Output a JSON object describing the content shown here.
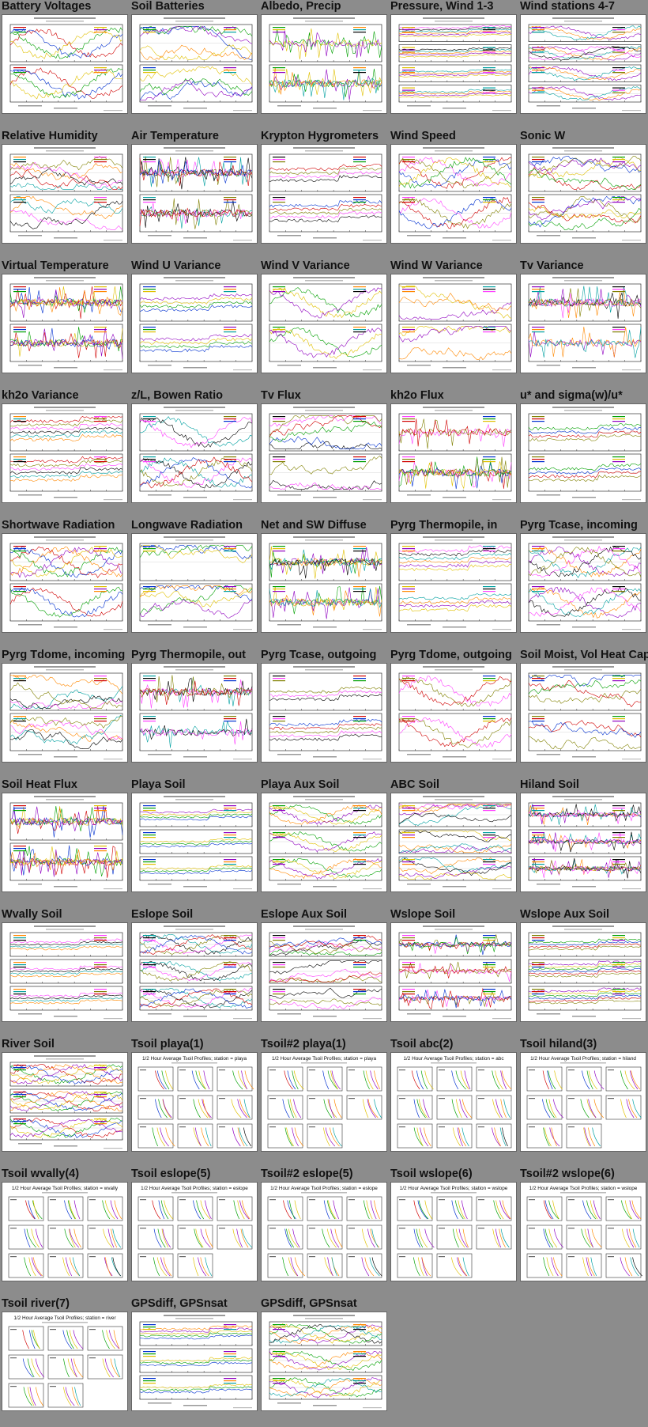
{
  "page": {
    "background": "#8c8c8c"
  },
  "thumbnails": [
    {
      "title": "Battery Voltages",
      "kind": "ts",
      "panels": 2
    },
    {
      "title": "Soil Batteries",
      "kind": "ts",
      "panels": 2
    },
    {
      "title": "Albedo, Precip",
      "kind": "ts",
      "panels": 2
    },
    {
      "title": "Pressure, Wind 1-3",
      "kind": "ts",
      "panels": 4
    },
    {
      "title": "Wind stations 4-7",
      "kind": "ts",
      "panels": 4
    },
    {
      "title": "Relative Humidity",
      "kind": "ts",
      "panels": 2
    },
    {
      "title": "Air Temperature",
      "kind": "ts",
      "panels": 2
    },
    {
      "title": "Krypton Hygrometers",
      "kind": "ts",
      "panels": 2
    },
    {
      "title": "Wind Speed",
      "kind": "ts",
      "panels": 2
    },
    {
      "title": "Sonic W",
      "kind": "ts",
      "panels": 2
    },
    {
      "title": "Virtual Temperature",
      "kind": "ts",
      "panels": 2
    },
    {
      "title": "Wind U Variance",
      "kind": "ts",
      "panels": 2
    },
    {
      "title": "Wind V Variance",
      "kind": "ts",
      "panels": 2
    },
    {
      "title": "Wind W Variance",
      "kind": "ts",
      "panels": 2
    },
    {
      "title": "Tv Variance",
      "kind": "ts",
      "panels": 2
    },
    {
      "title": "kh2o Variance",
      "kind": "ts",
      "panels": 2
    },
    {
      "title": "z/L, Bowen Ratio",
      "kind": "ts",
      "panels": 2
    },
    {
      "title": "Tv Flux",
      "kind": "ts",
      "panels": 2
    },
    {
      "title": "kh2o Flux",
      "kind": "ts",
      "panels": 2
    },
    {
      "title": "u* and sigma(w)/u*",
      "kind": "ts",
      "panels": 2
    },
    {
      "title": "Shortwave Radiation",
      "kind": "ts",
      "panels": 2
    },
    {
      "title": "Longwave Radiation",
      "kind": "ts",
      "panels": 2
    },
    {
      "title": "Net and SW Diffuse",
      "kind": "ts",
      "panels": 2
    },
    {
      "title": "Pyrg Thermopile, in",
      "kind": "ts",
      "panels": 2
    },
    {
      "title": "Pyrg Tcase, incoming",
      "kind": "ts",
      "panels": 2
    },
    {
      "title": "Pyrg Tdome, incoming",
      "kind": "ts",
      "panels": 2
    },
    {
      "title": "Pyrg Thermopile, out",
      "kind": "ts",
      "panels": 2
    },
    {
      "title": "Pyrg Tcase, outgoing",
      "kind": "ts",
      "panels": 2
    },
    {
      "title": "Pyrg Tdome, outgoing",
      "kind": "ts",
      "panels": 2
    },
    {
      "title": "Soil Moist, Vol Heat Cap",
      "kind": "ts",
      "panels": 2
    },
    {
      "title": "Soil Heat Flux",
      "kind": "ts",
      "panels": 2
    },
    {
      "title": "Playa Soil",
      "kind": "ts",
      "panels": 3
    },
    {
      "title": "Playa Aux Soil",
      "kind": "ts",
      "panels": 3
    },
    {
      "title": "ABC Soil",
      "kind": "ts",
      "panels": 3
    },
    {
      "title": "Hiland Soil",
      "kind": "ts",
      "panels": 3
    },
    {
      "title": "Wvally Soil",
      "kind": "ts",
      "panels": 3
    },
    {
      "title": "Eslope Soil",
      "kind": "ts",
      "panels": 3
    },
    {
      "title": "Eslope Aux Soil",
      "kind": "ts",
      "panels": 3
    },
    {
      "title": "Wslope Soil",
      "kind": "ts",
      "panels": 3
    },
    {
      "title": "Wslope Aux Soil",
      "kind": "ts",
      "panels": 3
    },
    {
      "title": "River Soil",
      "kind": "ts",
      "panels": 3
    },
    {
      "title": "Tsoil playa(1)",
      "kind": "profile",
      "header": "1/2 Hour Average Tsoil Profiles; station = playa"
    },
    {
      "title": "Tsoil#2 playa(1)",
      "kind": "profile",
      "header": "1/2 Hour Average Tsoil Profiles; station = playa"
    },
    {
      "title": "Tsoil abc(2)",
      "kind": "profile",
      "header": "1/2 Hour Average Tsoil Profiles; station = abc"
    },
    {
      "title": "Tsoil hiland(3)",
      "kind": "profile",
      "header": "1/2 Hour Average Tsoil Profiles; station = hiland"
    },
    {
      "title": "Tsoil wvally(4)",
      "kind": "profile",
      "header": "1/2 Hour Average Tsoil Profiles; station = wvally"
    },
    {
      "title": "Tsoil eslope(5)",
      "kind": "profile",
      "header": "1/2 Hour Average Tsoil Profiles; station = eslope"
    },
    {
      "title": "Tsoil#2 eslope(5)",
      "kind": "profile",
      "header": "1/2 Hour Average Tsoil Profiles; station = eslope"
    },
    {
      "title": "Tsoil wslope(6)",
      "kind": "profile",
      "header": "1/2 Hour Average Tsoil Profiles; station = wslope"
    },
    {
      "title": "Tsoil#2 wslope(6)",
      "kind": "profile",
      "header": "1/2 Hour Average Tsoil Profiles; station = wslope"
    },
    {
      "title": "Tsoil river(7)",
      "kind": "profile",
      "header": "1/2 Hour Average Tsoil Profiles; station = river"
    },
    {
      "title": "GPSdiff, GPSnsat",
      "kind": "ts",
      "panels": 3
    },
    {
      "title": "GPSdiff, GPSnsat",
      "kind": "ts",
      "panels": 3
    }
  ],
  "series_colors": [
    "#d00000",
    "#0030d0",
    "#00a000",
    "#e0c000",
    "#9000c0",
    "#ff8800",
    "#00a0a0",
    "#000000",
    "#ff40ff",
    "#808000"
  ]
}
